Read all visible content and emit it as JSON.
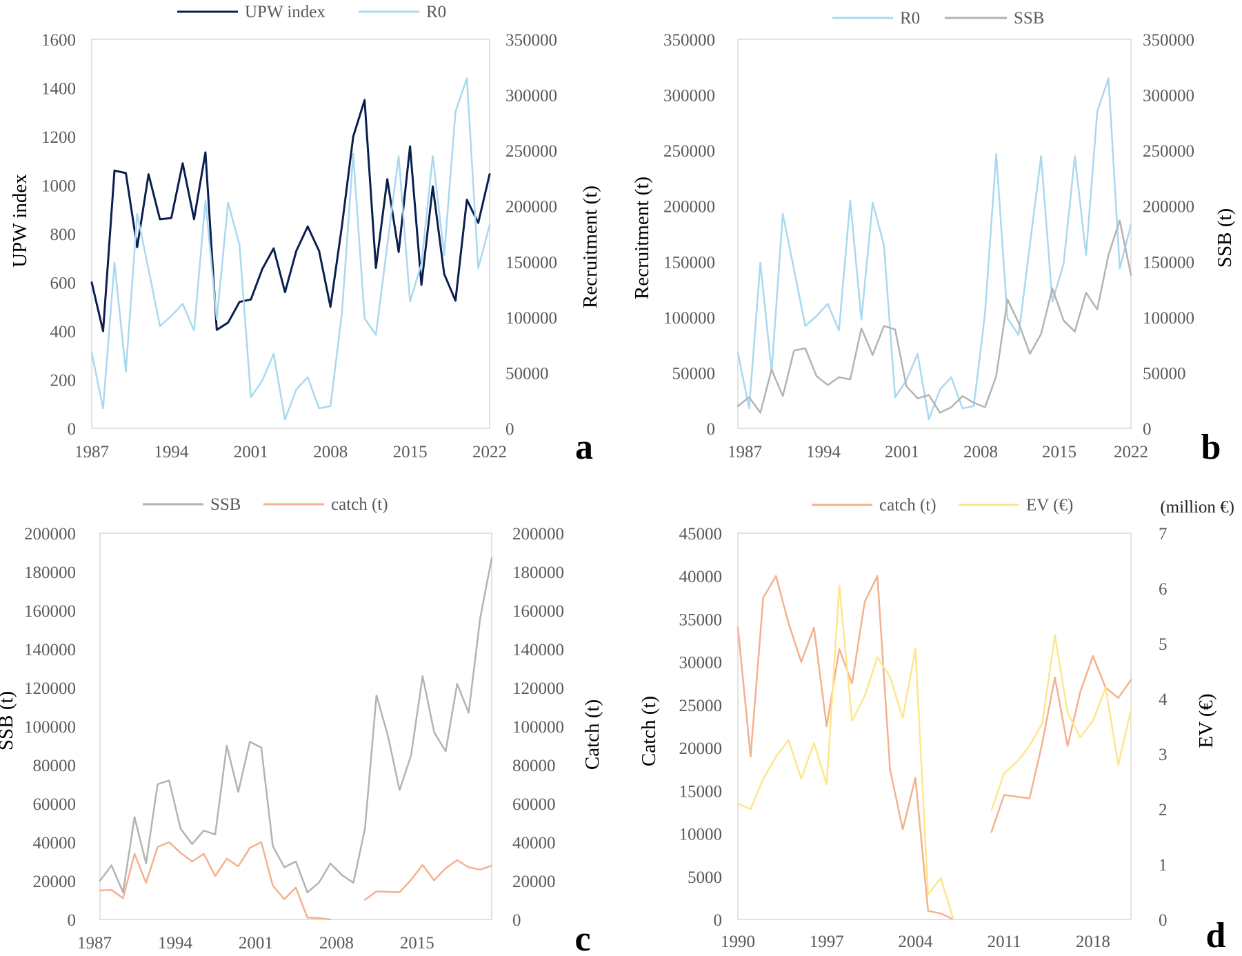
{
  "figure_name": "four-panel time series",
  "chart_data": [
    {
      "panel": "a",
      "type": "line",
      "x": [
        1987,
        1988,
        1989,
        1990,
        1991,
        1992,
        1993,
        1994,
        1995,
        1996,
        1997,
        1998,
        1999,
        2000,
        2001,
        2002,
        2003,
        2004,
        2005,
        2006,
        2007,
        2008,
        2009,
        2010,
        2011,
        2012,
        2013,
        2014,
        2015,
        2016,
        2017,
        2018,
        2019,
        2020,
        2021,
        2022
      ],
      "x_ticks": [
        "1987",
        "1994",
        "2001",
        "2008",
        "2015",
        "2022"
      ],
      "y_left": {
        "label": "UPW index",
        "ticks": [
          "0",
          "200",
          "400",
          "600",
          "800",
          "1000",
          "1200",
          "1400",
          "1600"
        ],
        "lim": [
          0,
          1600
        ]
      },
      "y_right": {
        "label": "Recruitment (t)",
        "ticks": [
          "0",
          "50000",
          "100000",
          "150000",
          "200000",
          "250000",
          "300000",
          "350000"
        ],
        "lim": [
          0,
          350000
        ]
      },
      "series": [
        {
          "name": "UPW index",
          "axis": "left",
          "color": "#0b1f4f",
          "values": [
            600,
            400,
            1060,
            1050,
            745,
            1045,
            860,
            865,
            1090,
            860,
            1135,
            405,
            435,
            520,
            530,
            655,
            740,
            560,
            730,
            830,
            730,
            500,
            830,
            1200,
            1350,
            660,
            1025,
            725,
            1160,
            590,
            995,
            635,
            525,
            940,
            845,
            1045
          ]
        },
        {
          "name": "R0",
          "axis": "right",
          "color": "#a9d8f0",
          "values": [
            68000,
            18000,
            149000,
            51000,
            193000,
            143000,
            92000,
            101000,
            112000,
            88000,
            205000,
            98000,
            203000,
            165000,
            28000,
            43000,
            67000,
            8000,
            35000,
            46000,
            18000,
            20000,
            103000,
            247000,
            99000,
            84000,
            165000,
            245000,
            114000,
            148000,
            245000,
            156000,
            285000,
            315000,
            144000,
            183000
          ]
        }
      ]
    },
    {
      "panel": "b",
      "type": "line",
      "x": [
        1987,
        1988,
        1989,
        1990,
        1991,
        1992,
        1993,
        1994,
        1995,
        1996,
        1997,
        1998,
        1999,
        2000,
        2001,
        2002,
        2003,
        2004,
        2005,
        2006,
        2007,
        2008,
        2009,
        2010,
        2011,
        2012,
        2013,
        2014,
        2015,
        2016,
        2017,
        2018,
        2019,
        2020,
        2021,
        2022
      ],
      "x_ticks": [
        "1987",
        "1994",
        "2001",
        "2008",
        "2015",
        "2022"
      ],
      "y_left": {
        "label": "Recruitment (t)",
        "ticks": [
          "0",
          "50000",
          "100000",
          "150000",
          "200000",
          "250000",
          "300000",
          "350000"
        ],
        "lim": [
          0,
          350000
        ]
      },
      "y_right": {
        "label": "SSB (t)",
        "ticks": [
          "0",
          "50000",
          "100000",
          "150000",
          "200000",
          "250000",
          "300000",
          "350000"
        ],
        "lim": [
          0,
          350000
        ]
      },
      "series": [
        {
          "name": "R0",
          "axis": "left",
          "color": "#a9d8f0",
          "values": [
            68000,
            18000,
            149000,
            51000,
            193000,
            143000,
            92000,
            101000,
            112000,
            88000,
            205000,
            98000,
            203000,
            165000,
            28000,
            43000,
            67000,
            8000,
            35000,
            46000,
            18000,
            20000,
            103000,
            247000,
            99000,
            84000,
            165000,
            245000,
            114000,
            148000,
            245000,
            156000,
            285000,
            315000,
            144000,
            183000
          ]
        },
        {
          "name": "SSB",
          "axis": "right",
          "color": "#b3b3b3",
          "values": [
            20000,
            28000,
            14000,
            53000,
            29000,
            70000,
            72000,
            47000,
            39000,
            46000,
            44000,
            90000,
            66000,
            92000,
            89000,
            38000,
            27000,
            30000,
            14000,
            19000,
            29000,
            23000,
            19000,
            47000,
            116000,
            95000,
            67000,
            85000,
            126000,
            97000,
            87000,
            122000,
            107000,
            156000,
            187000,
            138000
          ]
        }
      ]
    },
    {
      "panel": "c",
      "type": "line",
      "x": [
        1987,
        1988,
        1989,
        1990,
        1991,
        1992,
        1993,
        1994,
        1995,
        1996,
        1997,
        1998,
        1999,
        2000,
        2001,
        2002,
        2003,
        2004,
        2005,
        2006,
        2007,
        2008,
        2009,
        2010,
        2011,
        2012,
        2013,
        2014,
        2015,
        2016,
        2017,
        2018,
        2019,
        2020,
        2021
      ],
      "x_ticks": [
        "1987",
        "1994",
        "2001",
        "2008",
        "2015"
      ],
      "y_left": {
        "label": "SSB (t)",
        "ticks": [
          "0",
          "20000",
          "40000",
          "60000",
          "80000",
          "100000",
          "120000",
          "140000",
          "160000",
          "180000",
          "200000"
        ],
        "lim": [
          0,
          200000
        ]
      },
      "y_right": {
        "label": "Catch (t)",
        "ticks": [
          "0",
          "20000",
          "40000",
          "60000",
          "80000",
          "100000",
          "120000",
          "140000",
          "160000",
          "180000",
          "200000"
        ],
        "lim": [
          0,
          200000
        ]
      },
      "series": [
        {
          "name": "SSB",
          "axis": "left",
          "color": "#b3b3b3",
          "values": [
            20000,
            28000,
            14000,
            53000,
            29000,
            70000,
            72000,
            47000,
            39000,
            46000,
            44000,
            90000,
            66000,
            92000,
            89000,
            38000,
            27000,
            30000,
            14000,
            19000,
            29000,
            23000,
            19000,
            47000,
            116000,
            95000,
            67000,
            85000,
            126000,
            97000,
            87000,
            122000,
            107000,
            156000,
            187000
          ]
        },
        {
          "name": "catch (t)",
          "axis": "right",
          "color": "#f4b18f",
          "values": [
            15000,
            15300,
            11000,
            34000,
            19000,
            37500,
            40000,
            34500,
            30000,
            34000,
            22500,
            31500,
            27500,
            37000,
            40000,
            17500,
            10500,
            16500,
            1000,
            700,
            0,
            null,
            null,
            10200,
            14500,
            14300,
            14100,
            20500,
            28200,
            20200,
            26500,
            30700,
            27000,
            25800,
            27900
          ]
        }
      ]
    },
    {
      "panel": "d",
      "type": "line",
      "x": [
        1990,
        1991,
        1992,
        1993,
        1994,
        1995,
        1996,
        1997,
        1998,
        1999,
        2000,
        2001,
        2002,
        2003,
        2004,
        2005,
        2006,
        2007,
        2008,
        2009,
        2010,
        2011,
        2012,
        2013,
        2014,
        2015,
        2016,
        2017,
        2018,
        2019,
        2020,
        2021
      ],
      "x_ticks": [
        "1990",
        "1997",
        "2004",
        "2011",
        "2018"
      ],
      "y_left": {
        "label": "Catch (t)",
        "ticks": [
          "0",
          "5000",
          "10000",
          "15000",
          "20000",
          "25000",
          "30000",
          "35000",
          "40000",
          "45000"
        ],
        "lim": [
          0,
          45000
        ]
      },
      "y_right": {
        "label": "EV (€)",
        "unit_note": "(million €)",
        "ticks": [
          "0",
          "1",
          "2",
          "3",
          "4",
          "5",
          "6",
          "7"
        ],
        "lim": [
          0,
          7
        ]
      },
      "series": [
        {
          "name": "catch (t)",
          "axis": "left",
          "color": "#f4b18f",
          "values": [
            34000,
            19000,
            37500,
            40000,
            34500,
            30000,
            34000,
            22500,
            31500,
            27500,
            37000,
            40000,
            17500,
            10500,
            16500,
            1000,
            700,
            0,
            null,
            null,
            10200,
            14500,
            14300,
            14100,
            20500,
            28200,
            20200,
            26500,
            30700,
            27000,
            25800,
            27900
          ]
        },
        {
          "name": "EV (€)",
          "axis": "right",
          "color": "#ffe68a",
          "values": [
            2.1,
            2.0,
            2.55,
            2.95,
            3.25,
            2.55,
            3.2,
            2.45,
            6.05,
            3.6,
            4.05,
            4.75,
            4.4,
            3.65,
            4.9,
            0.45,
            0.75,
            0.0,
            null,
            null,
            1.98,
            2.65,
            2.85,
            3.15,
            3.55,
            5.15,
            3.75,
            3.3,
            3.6,
            4.2,
            2.8,
            3.8
          ]
        }
      ]
    }
  ]
}
